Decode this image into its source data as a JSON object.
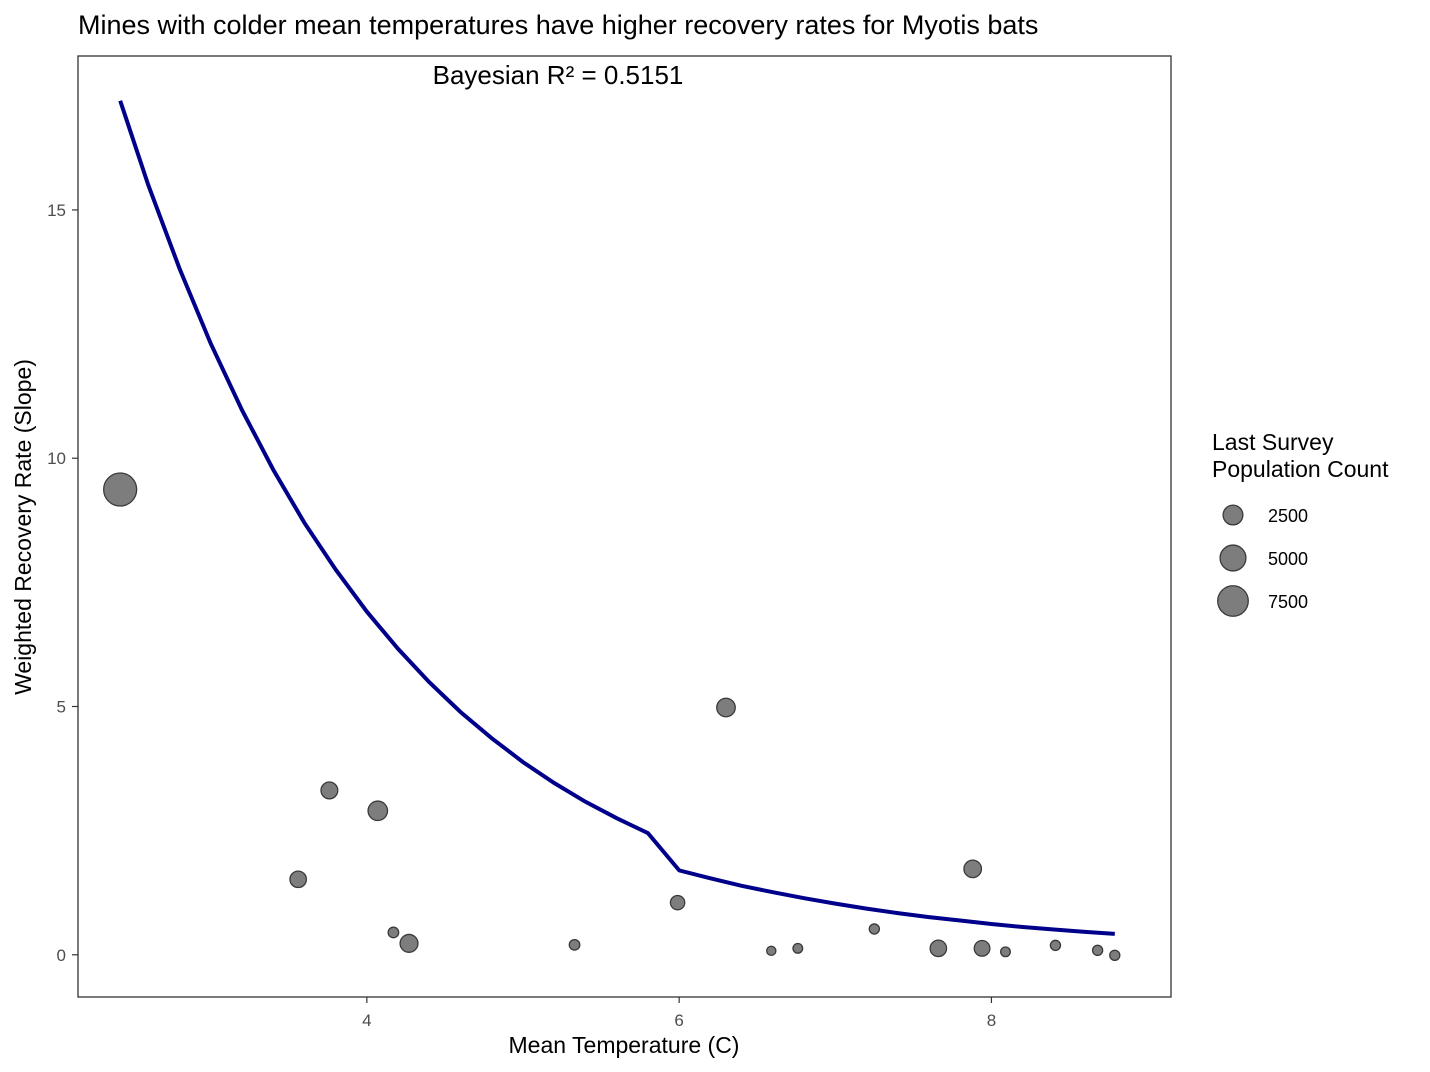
{
  "chart_data": {
    "type": "scatter",
    "title": "Mines with colder mean temperatures have higher recovery rates for Myotis bats",
    "annotation": "Bayesian R² = 0.5151",
    "xlabel": "Mean Temperature (C)",
    "ylabel": "Weighted Recovery Rate (Slope)",
    "xlim": [
      2.15,
      9.15
    ],
    "ylim": [
      -0.85,
      18.1
    ],
    "x_ticks": [
      4,
      6,
      8
    ],
    "x_tick_labels": [
      "4",
      "6",
      "8"
    ],
    "y_ticks": [
      0,
      5,
      10,
      15
    ],
    "y_tick_labels": [
      "0",
      "5",
      "10",
      "15"
    ],
    "grid": false,
    "point_color": "#666666",
    "line_color": "#00008b",
    "points": [
      {
        "x": 2.42,
        "y": 9.37,
        "size": 9000
      },
      {
        "x": 3.56,
        "y": 1.52,
        "size": 1500
      },
      {
        "x": 3.76,
        "y": 3.31,
        "size": 1600
      },
      {
        "x": 4.07,
        "y": 2.9,
        "size": 2400
      },
      {
        "x": 4.17,
        "y": 0.45,
        "size": 350
      },
      {
        "x": 4.27,
        "y": 0.23,
        "size": 1900
      },
      {
        "x": 5.33,
        "y": 0.2,
        "size": 350
      },
      {
        "x": 5.99,
        "y": 1.05,
        "size": 1000
      },
      {
        "x": 6.3,
        "y": 4.98,
        "size": 2100
      },
      {
        "x": 6.59,
        "y": 0.08,
        "size": 200
      },
      {
        "x": 6.76,
        "y": 0.13,
        "size": 250
      },
      {
        "x": 7.25,
        "y": 0.52,
        "size": 300
      },
      {
        "x": 7.66,
        "y": 0.13,
        "size": 1500
      },
      {
        "x": 7.88,
        "y": 1.73,
        "size": 1800
      },
      {
        "x": 7.94,
        "y": 0.13,
        "size": 1300
      },
      {
        "x": 8.09,
        "y": 0.06,
        "size": 250
      },
      {
        "x": 8.41,
        "y": 0.19,
        "size": 300
      },
      {
        "x": 8.68,
        "y": 0.09,
        "size": 300
      },
      {
        "x": 8.79,
        "y": -0.01,
        "size": 300
      }
    ],
    "fit_line": {
      "x": [
        2.42,
        2.6,
        2.8,
        3.0,
        3.2,
        3.4,
        3.6,
        3.8,
        4.0,
        4.2,
        4.4,
        4.6,
        4.8,
        5.0,
        5.2,
        5.4,
        5.6,
        5.8,
        6.0,
        6.2,
        6.4,
        6.6,
        6.8,
        7.0,
        7.2,
        7.4,
        7.6,
        7.8,
        8.0,
        8.2,
        8.4,
        8.6,
        8.79
      ],
      "y": [
        17.2,
        15.5,
        13.82,
        12.31,
        10.97,
        9.77,
        8.7,
        7.76,
        6.91,
        6.16,
        5.49,
        4.89,
        4.36,
        3.88,
        3.46,
        3.08,
        2.75,
        2.45,
        1.7,
        1.54,
        1.39,
        1.26,
        1.14,
        1.03,
        0.93,
        0.84,
        0.76,
        0.69,
        0.62,
        0.56,
        0.51,
        0.46,
        0.42
      ]
    },
    "legend": {
      "title_lines": [
        "Last Survey",
        "Population Count"
      ],
      "placement": "right",
      "entries": [
        {
          "label": "2500",
          "size": 2500
        },
        {
          "label": "5000",
          "size": 5000
        },
        {
          "label": "7500",
          "size": 7500
        }
      ]
    }
  }
}
